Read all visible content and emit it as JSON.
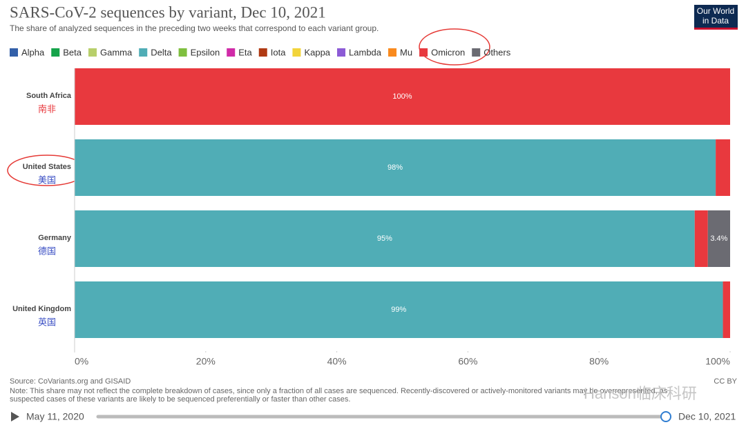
{
  "chart_data": {
    "type": "stacked-bar-horizontal",
    "title": "SARS-CoV-2 sequences by variant, Dec 10, 2021",
    "subtitle": "The share of analyzed sequences in the preceding two weeks that correspond to each variant group.",
    "categories": [
      "South Africa",
      "United States",
      "Germany",
      "United Kingdom"
    ],
    "annotations": [
      {
        "text": "南非",
        "color": "#e8383d"
      },
      {
        "text": "美国",
        "color": "#3b4fc4"
      },
      {
        "text": "德国",
        "color": "#3b4fc4"
      },
      {
        "text": "英国",
        "color": "#3b4fc4"
      }
    ],
    "series": [
      {
        "name": "Alpha",
        "color": "#3360a9",
        "values": [
          0,
          0,
          0,
          0
        ]
      },
      {
        "name": "Beta",
        "color": "#15a34a",
        "values": [
          0,
          0,
          0,
          0
        ]
      },
      {
        "name": "Gamma",
        "color": "#b8cf6b",
        "values": [
          0,
          0,
          0,
          0
        ]
      },
      {
        "name": "Delta",
        "color": "#50adb6",
        "values": [
          0,
          97.8,
          94.6,
          98.9
        ],
        "value_labels": [
          null,
          "98%",
          "95%",
          "99%"
        ]
      },
      {
        "name": "Epsilon",
        "color": "#7fbf3f",
        "values": [
          0,
          0,
          0,
          0
        ]
      },
      {
        "name": "Eta",
        "color": "#d02ba8",
        "values": [
          0,
          0,
          0,
          0
        ]
      },
      {
        "name": "Iota",
        "color": "#b03a13",
        "values": [
          0,
          0,
          0,
          0
        ]
      },
      {
        "name": "Kappa",
        "color": "#f2d43a",
        "values": [
          0,
          0,
          0,
          0
        ]
      },
      {
        "name": "Lambda",
        "color": "#8c5bd6",
        "values": [
          0,
          0,
          0,
          0
        ]
      },
      {
        "name": "Mu",
        "color": "#f98a1e",
        "values": [
          0,
          0,
          0,
          0
        ]
      },
      {
        "name": "Omicron",
        "color": "#e8393e",
        "values": [
          100,
          2.2,
          2.0,
          1.1
        ],
        "value_labels": [
          "100%",
          null,
          null,
          null
        ]
      },
      {
        "name": "Others",
        "color": "#6b6b72",
        "values": [
          0,
          0,
          3.4,
          0
        ],
        "value_labels": [
          null,
          null,
          "3.4%",
          null
        ]
      }
    ],
    "xlim": [
      0,
      100
    ],
    "xticks": [
      {
        "value": 0,
        "label": "0%"
      },
      {
        "value": 20,
        "label": "20%"
      },
      {
        "value": 40,
        "label": "40%"
      },
      {
        "value": 60,
        "label": "60%"
      },
      {
        "value": 80,
        "label": "80%"
      },
      {
        "value": 100,
        "label": "100%"
      }
    ],
    "grid": false,
    "legend": "top",
    "source": "Source: CoVariants.org and GISAID",
    "note": "Note: This share may not reflect the complete breakdown of cases, since only a fraction of all cases are sequenced. Recently-discovered or actively-monitored variants may be overrepresented, as",
    "note2": "suspected cases of these variants are likely to be sequenced preferentially or faster than other cases.",
    "license": "CC BY",
    "logo": [
      "Our World",
      "in Data"
    ],
    "timeline": {
      "start": "May 11, 2020",
      "end": "Dec 10, 2021"
    },
    "watermark": "Hanson临床科研"
  }
}
